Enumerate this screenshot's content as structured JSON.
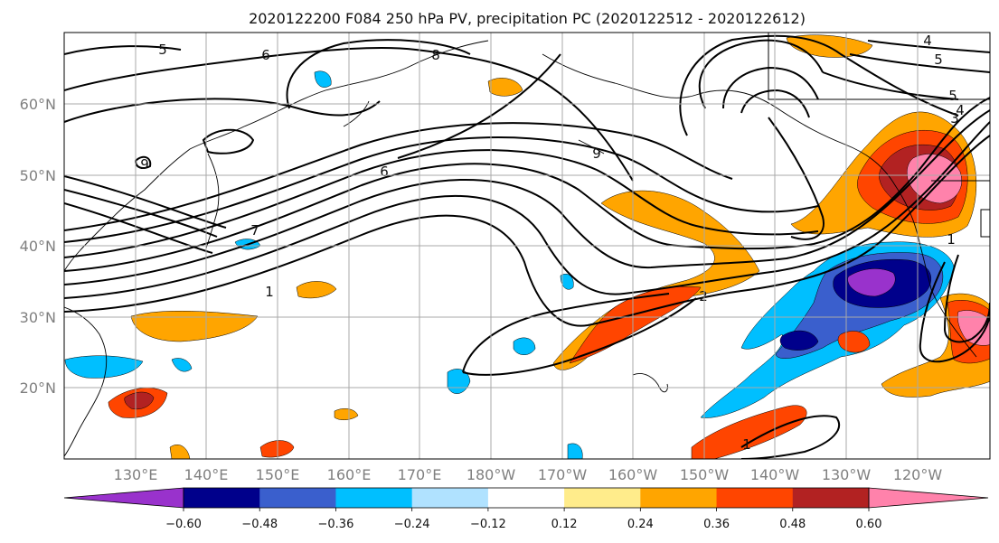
{
  "title": "2020122200 F084 250 hPa PV, precipitation PC (2020122512 - 2020122612)",
  "map": {
    "lat_ticks": [
      "60°N",
      "50°N",
      "40°N",
      "30°N",
      "20°N"
    ],
    "lon_ticks": [
      "130°E",
      "140°E",
      "150°E",
      "160°E",
      "170°E",
      "180°W",
      "170°W",
      "160°W",
      "150°W",
      "140°W",
      "130°W",
      "120°W"
    ],
    "pv_contour_labels": [
      "5",
      "6",
      "8",
      "9",
      "6",
      "7",
      "1",
      "9",
      "2",
      "5",
      "4",
      "5",
      "4",
      "3",
      "1",
      "1"
    ],
    "grid": true
  },
  "colorbar": {
    "colors": [
      "#9932cc",
      "#00008b",
      "#3a5fcd",
      "#00bfff",
      "#b0e2ff",
      "#ffffff",
      "#ffec8b",
      "#ffa500",
      "#ff4500",
      "#b22222",
      "#ff82ab"
    ],
    "ticks": [
      "−0.60",
      "−0.48",
      "−0.36",
      "−0.24",
      "−0.12",
      "0.12",
      "0.24",
      "0.36",
      "0.48",
      "0.60"
    ],
    "extend": "both"
  }
}
